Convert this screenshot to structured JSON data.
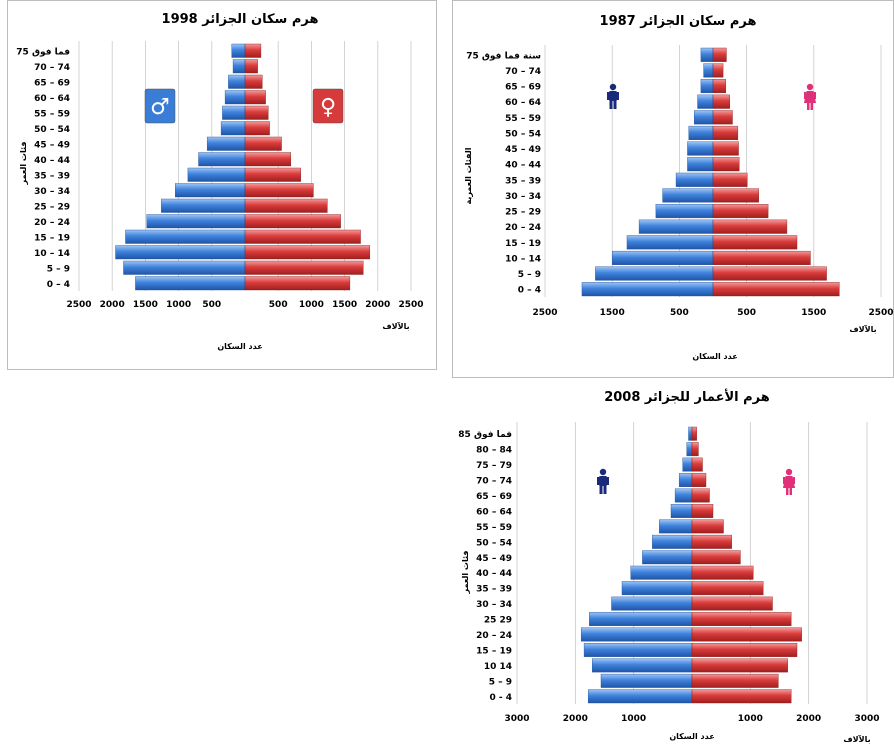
{
  "chart_data": [
    {
      "type": "bar",
      "title": "هرم سكان الجزائر 1998",
      "ylabel": "فئات العمر",
      "xlabel": "عدد السكان",
      "unit": "بالآلاف",
      "xticks_left": [
        "2500",
        "2000",
        "1500",
        "1000",
        "500"
      ],
      "xticks_right": [
        "500",
        "1000",
        "1500",
        "2000",
        "2500"
      ],
      "xlim": [
        0,
        2500
      ],
      "categories": [
        "0 – 4",
        "5 – 9",
        "10 – 14",
        "15 – 19",
        "20 – 24",
        "25 – 29",
        "30 – 34",
        "35 – 39",
        "40 – 44",
        "45 – 49",
        "50 – 54",
        "55 – 59",
        "60 – 64",
        "65 – 69",
        "70 – 74",
        "75 فما فوق"
      ],
      "series": [
        {
          "name": "male",
          "color": "#3d7dd6",
          "values": [
            1650,
            1830,
            1950,
            1800,
            1480,
            1260,
            1050,
            860,
            700,
            570,
            360,
            340,
            300,
            250,
            180,
            200
          ]
        },
        {
          "name": "female",
          "color": "#d63a3a",
          "values": [
            1580,
            1780,
            1880,
            1740,
            1440,
            1240,
            1030,
            840,
            690,
            550,
            370,
            350,
            310,
            260,
            190,
            240
          ]
        }
      ],
      "grid": true
    },
    {
      "type": "bar",
      "title": "هرم سكان الجزائر 1987",
      "ylabel": "الفئات العمرية",
      "xlabel": "عدد السكان",
      "unit": "بالآلاف",
      "xticks_left": [
        "2500",
        "1500",
        "500"
      ],
      "xticks_right": [
        "500",
        "1500",
        "2500"
      ],
      "xlim": [
        0,
        2500
      ],
      "categories": [
        "0 – 4",
        "5 – 9",
        "10 – 14",
        "15 – 19",
        "20 – 24",
        "25 – 29",
        "30 – 34",
        "35 – 39",
        "40 – 44",
        "45 – 49",
        "50 – 54",
        "55 – 59",
        "60 – 64",
        "65 – 69",
        "70 – 74",
        "75 سنة فما فوق"
      ],
      "series": [
        {
          "name": "male",
          "color": "#3d7dd6",
          "values": [
            1950,
            1750,
            1500,
            1280,
            1100,
            850,
            750,
            550,
            380,
            380,
            360,
            280,
            230,
            180,
            140,
            180
          ]
        },
        {
          "name": "female",
          "color": "#d63a3a",
          "values": [
            1880,
            1690,
            1450,
            1250,
            1100,
            820,
            680,
            510,
            390,
            380,
            370,
            290,
            250,
            190,
            150,
            200
          ]
        }
      ],
      "grid": true
    },
    {
      "type": "bar",
      "title": "هرم الأعمار للجزائر 2008",
      "ylabel": "فئات العمر",
      "xlabel": "عدد السكان",
      "unit": "بالآلاف",
      "xticks_left": [
        "3000",
        "2000",
        "1000"
      ],
      "xticks_right": [
        "1000",
        "2000",
        "3000"
      ],
      "xlim": [
        0,
        3000
      ],
      "categories": [
        "0 - 4",
        "5 – 9",
        "10 14",
        "15 – 19",
        "20 – 24",
        "25 29",
        "30 – 34",
        "35 – 39",
        "40 – 44",
        "45 – 49",
        "50 – 54",
        "55 – 59",
        "60 – 64",
        "65 – 69",
        "70 – 74",
        "75 – 79",
        "80 – 84",
        "85 فما فوق"
      ],
      "series": [
        {
          "name": "male",
          "color": "#3d7dd6",
          "values": [
            1780,
            1560,
            1710,
            1850,
            1900,
            1760,
            1380,
            1200,
            1050,
            850,
            680,
            560,
            360,
            290,
            220,
            160,
            90,
            60
          ]
        },
        {
          "name": "female",
          "color": "#d63a3a",
          "values": [
            1700,
            1480,
            1640,
            1800,
            1880,
            1700,
            1380,
            1220,
            1050,
            830,
            680,
            540,
            360,
            300,
            240,
            180,
            110,
            80
          ]
        }
      ],
      "grid": true
    }
  ]
}
